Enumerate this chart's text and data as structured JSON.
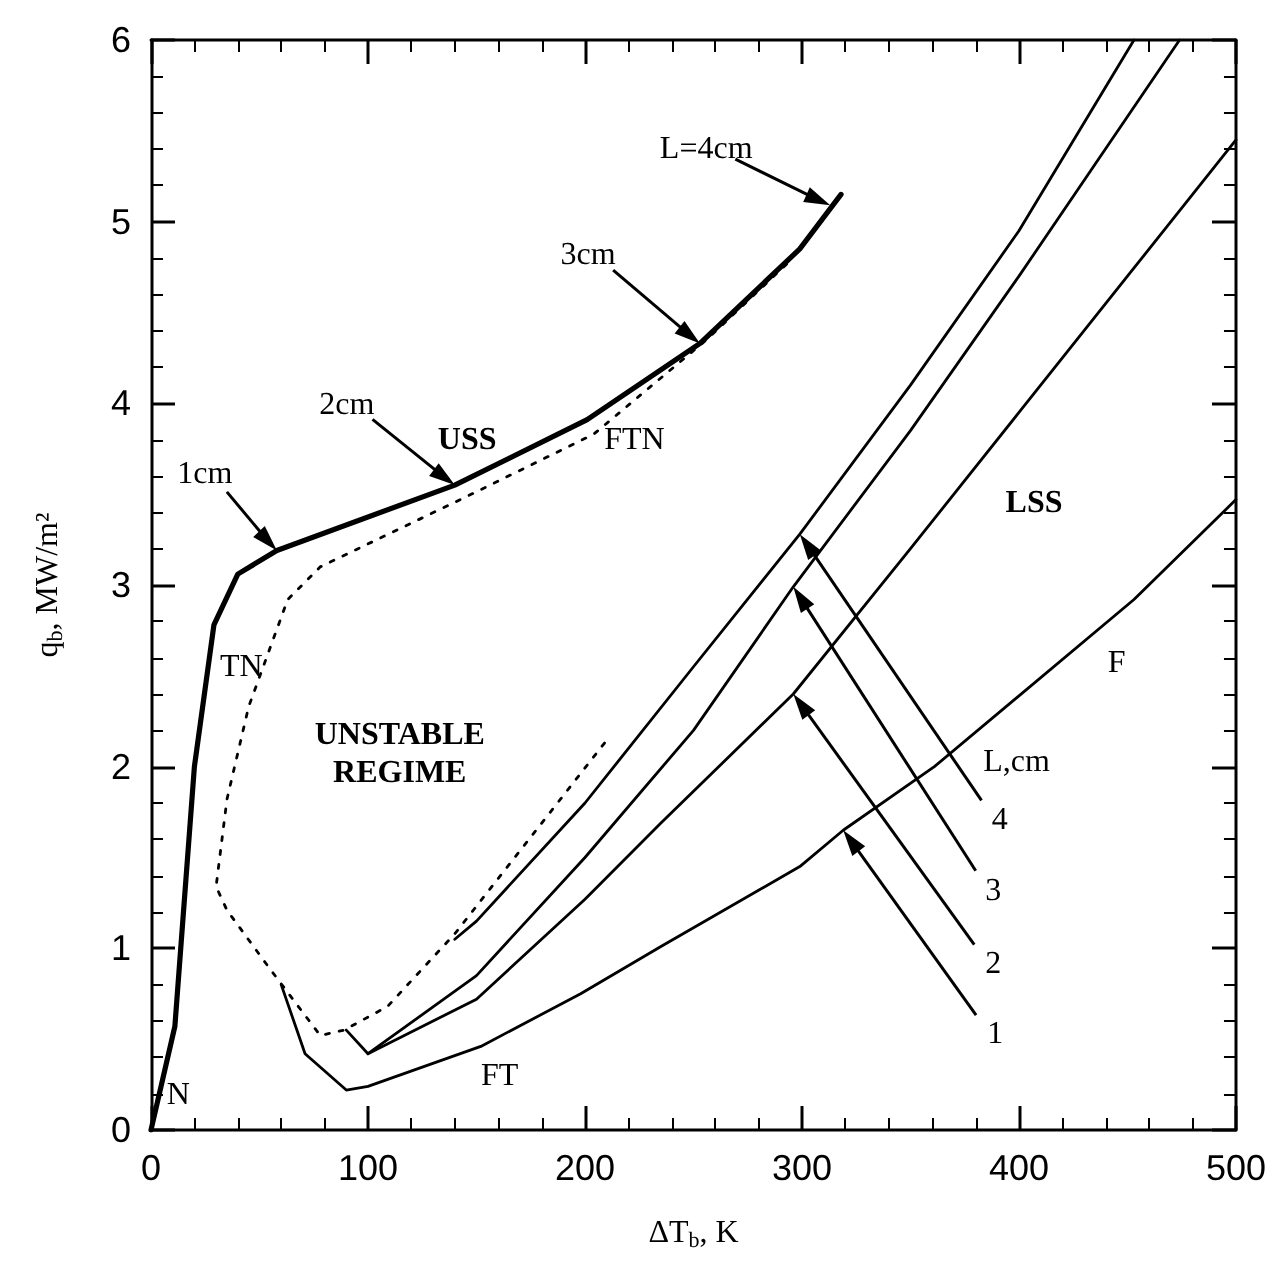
{
  "chart_data": {
    "type": "line",
    "xlabel": "ΔT$_{b}$, K",
    "ylabel": "q$_{b}$, MW/m²",
    "xlim": [
      0,
      500
    ],
    "xticks": [
      0,
      100,
      200,
      300,
      400,
      500
    ],
    "ylim": [
      0,
      6
    ],
    "yticks": [
      0,
      1,
      2,
      3,
      4,
      5,
      6
    ],
    "grid": false,
    "marker": "none",
    "series": [
      {
        "color": "#000000",
        "line_style": "solid",
        "x": [
          0,
          11,
          20,
          29,
          40,
          58,
          140,
          201,
          253,
          299,
          318
        ],
        "values": [
          0,
          0.57,
          2.0,
          2.78,
          3.06,
          3.19,
          3.55,
          3.91,
          4.33,
          4.85,
          5.15
        ]
      },
      {
        "color": "#000000",
        "line_style": "dotted",
        "x": [
          209,
          140,
          109,
          89,
          78,
          54,
          35,
          30,
          35,
          45,
          63,
          78,
          146,
          204,
          256,
          295
        ],
        "values": [
          2.13,
          1.08,
          0.68,
          0.55,
          0.52,
          0.9,
          1.21,
          1.34,
          1.82,
          2.33,
          2.92,
          3.1,
          3.49,
          3.83,
          4.35,
          4.79
        ]
      },
      {
        "color": "#000000",
        "line_style": "solid",
        "x": [
          140,
          150,
          200,
          250,
          299,
          350,
          400,
          453
        ],
        "values": [
          1.05,
          1.15,
          1.8,
          2.55,
          3.28,
          4.1,
          4.95,
          6.0
        ]
      },
      {
        "color": "#000000",
        "line_style": "solid",
        "x": [
          90,
          100,
          150,
          200,
          250,
          296,
          350,
          400,
          474
        ],
        "values": [
          0.55,
          0.42,
          0.85,
          1.5,
          2.2,
          2.99,
          3.85,
          4.7,
          6.0
        ]
      },
      {
        "color": "#000000",
        "line_style": "solid",
        "x": [
          100,
          150,
          200,
          235,
          296,
          350,
          400,
          450,
          500
        ],
        "values": [
          0.42,
          0.72,
          1.27,
          1.69,
          2.4,
          3.2,
          3.95,
          4.7,
          5.45
        ]
      },
      {
        "color": "#000000",
        "line_style": "solid",
        "x": [
          60,
          71,
          90,
          100,
          152,
          198,
          235,
          299,
          319,
          361,
          453,
          500
        ],
        "values": [
          0.8,
          0.42,
          0.22,
          0.24,
          0.46,
          0.75,
          1.01,
          1.45,
          1.65,
          2.0,
          2.92,
          3.47
        ]
      }
    ],
    "annotations": [
      {
        "text": "1cm",
        "x": 58,
        "y": 3.19
      },
      {
        "text": "2cm",
        "x": 140,
        "y": 3.55
      },
      {
        "text": "3cm",
        "x": 253,
        "y": 4.33
      },
      {
        "text": "L=4cm",
        "x": 313,
        "y": 5.09
      },
      {
        "text": "4",
        "x": 299,
        "y": 3.28
      },
      {
        "text": "3",
        "x": 296,
        "y": 2.99
      },
      {
        "text": "2",
        "x": 296,
        "y": 2.4
      },
      {
        "text": "1",
        "x": 319,
        "y": 1.65
      },
      "L,cm",
      "USS",
      "FTN",
      "TN",
      "N",
      "UNSTABLE\nREGIME",
      "FT",
      "LSS",
      "F"
    ]
  }
}
